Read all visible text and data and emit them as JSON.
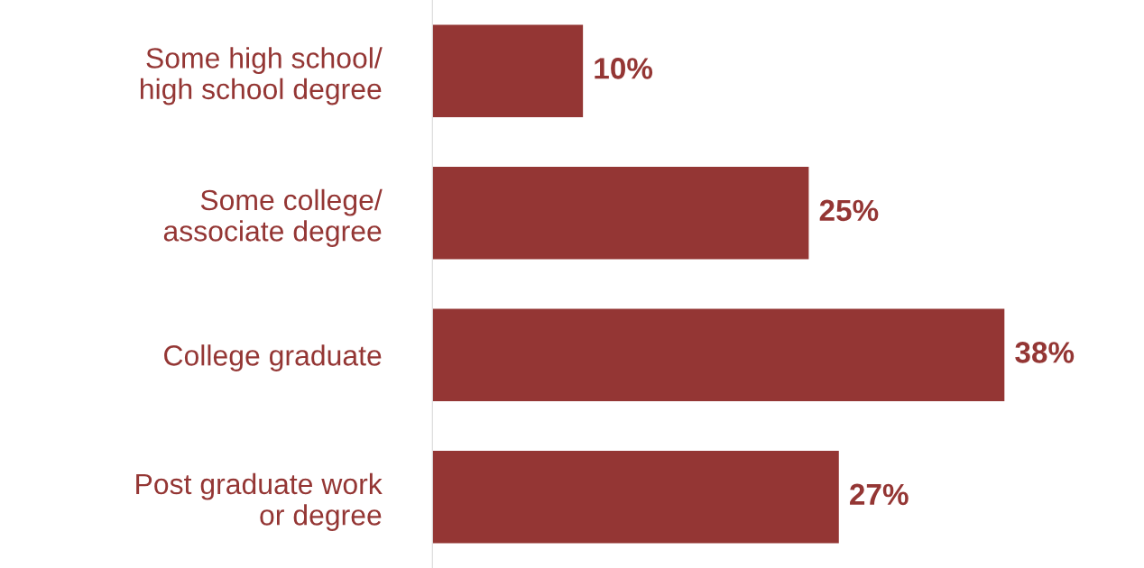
{
  "chart_data": {
    "type": "bar",
    "orientation": "horizontal",
    "categories": [
      "Some high school/\nhigh school degree",
      "Some college/\nassociate degree",
      "College graduate",
      "Post graduate work\nor degree"
    ],
    "values": [
      10,
      25,
      38,
      27
    ],
    "value_labels": [
      "10%",
      "25%",
      "38%",
      "27%"
    ],
    "color": "#943634",
    "grid": false,
    "legend": false
  }
}
